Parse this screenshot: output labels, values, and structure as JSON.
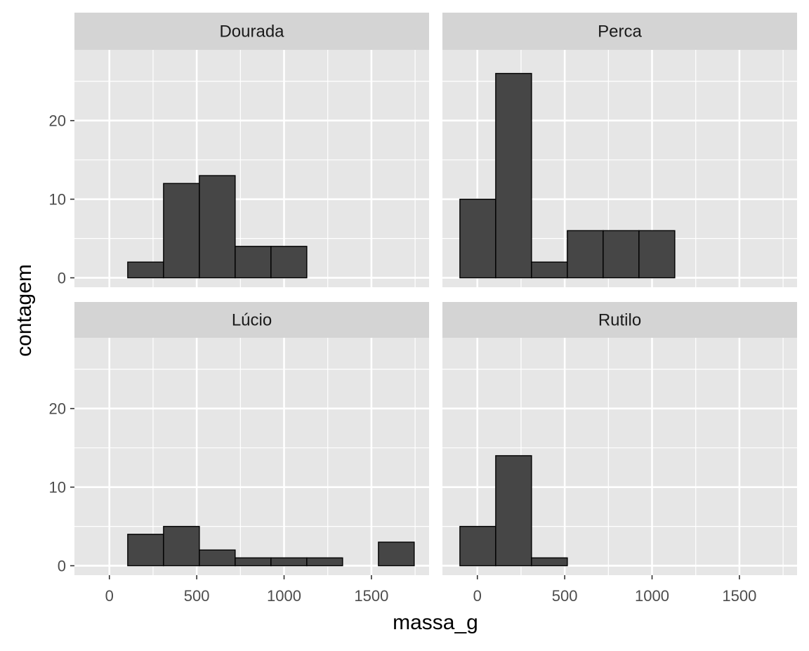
{
  "chart_data": {
    "type": "histogram",
    "xlabel": "massa_g",
    "ylabel": "contagem",
    "xlim": [
      -200,
      1830
    ],
    "ylim": [
      -1.2,
      29
    ],
    "x_ticks": [
      0,
      500,
      1000,
      1500
    ],
    "x_tick_labels": [
      "0",
      "500",
      "1000",
      "1500"
    ],
    "y_ticks": [
      0,
      10,
      20
    ],
    "y_tick_labels": [
      "0",
      "10",
      "20"
    ],
    "grid": true,
    "layout": "2x2 facets",
    "colors": {
      "panel_background": "#e6e6e6",
      "strip_background": "#d4d4d4",
      "grid_line": "#ffffff",
      "bar_fill": "#464646",
      "bar_outline": "#000000"
    },
    "facets": [
      {
        "title": "Dourada",
        "bins": [
          {
            "x0": 105,
            "x1": 310,
            "count": 2
          },
          {
            "x0": 310,
            "x1": 515,
            "count": 12
          },
          {
            "x0": 515,
            "x1": 720,
            "count": 13
          },
          {
            "x0": 720,
            "x1": 925,
            "count": 4
          },
          {
            "x0": 925,
            "x1": 1130,
            "count": 4
          }
        ]
      },
      {
        "title": "Perca",
        "bins": [
          {
            "x0": -100,
            "x1": 105,
            "count": 10
          },
          {
            "x0": 105,
            "x1": 310,
            "count": 26
          },
          {
            "x0": 310,
            "x1": 515,
            "count": 2
          },
          {
            "x0": 515,
            "x1": 720,
            "count": 6
          },
          {
            "x0": 720,
            "x1": 925,
            "count": 6
          },
          {
            "x0": 925,
            "x1": 1130,
            "count": 6
          }
        ]
      },
      {
        "title": "Lúcio",
        "bins": [
          {
            "x0": 105,
            "x1": 310,
            "count": 4
          },
          {
            "x0": 310,
            "x1": 515,
            "count": 5
          },
          {
            "x0": 515,
            "x1": 720,
            "count": 2
          },
          {
            "x0": 720,
            "x1": 925,
            "count": 1
          },
          {
            "x0": 925,
            "x1": 1130,
            "count": 1
          },
          {
            "x0": 1130,
            "x1": 1335,
            "count": 1
          },
          {
            "x0": 1540,
            "x1": 1745,
            "count": 3
          }
        ]
      },
      {
        "title": "Rutilo",
        "bins": [
          {
            "x0": -100,
            "x1": 105,
            "count": 5
          },
          {
            "x0": 105,
            "x1": 310,
            "count": 14
          },
          {
            "x0": 310,
            "x1": 515,
            "count": 1
          }
        ]
      }
    ]
  }
}
